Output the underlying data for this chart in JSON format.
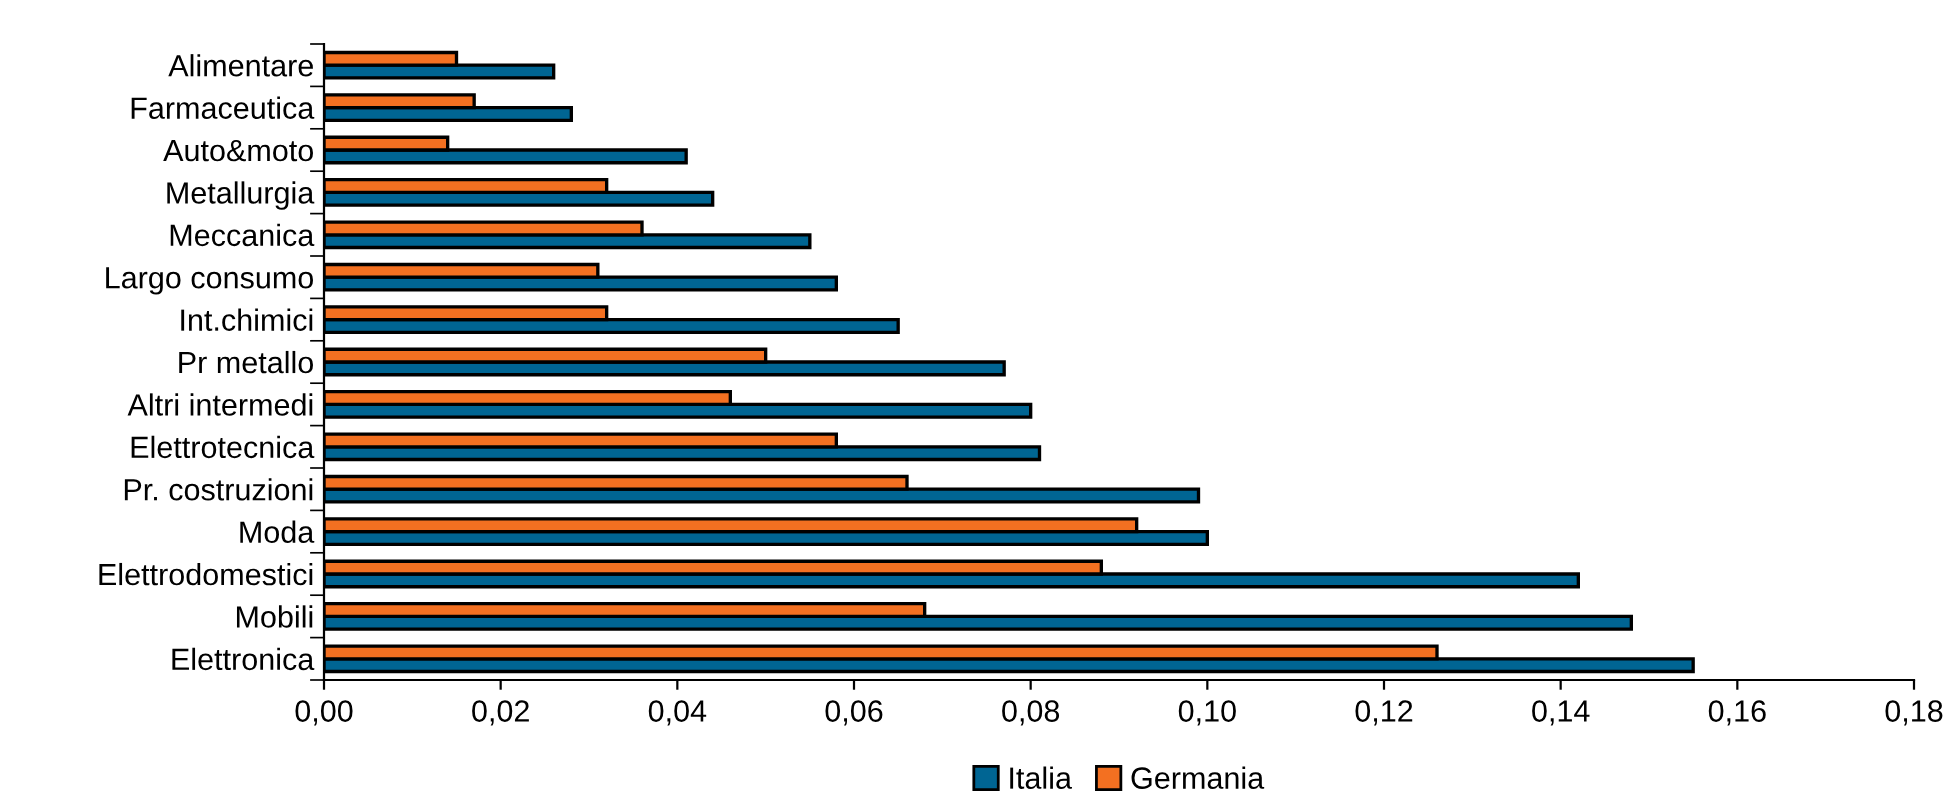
{
  "chart_data": {
    "type": "bar",
    "orientation": "horizontal",
    "categories": [
      "Alimentare",
      "Farmaceutica",
      "Auto&moto",
      "Metallurgia",
      "Meccanica",
      "Largo consumo",
      "Int.chimici",
      "Pr metallo",
      "Altri intermedi",
      "Elettrotecnica",
      "Pr. costruzioni",
      "Moda",
      "Elettrodomestici",
      "Mobili",
      "Elettronica"
    ],
    "series": [
      {
        "name": "Italia",
        "color": "#006593",
        "values": [
          0.026,
          0.028,
          0.041,
          0.044,
          0.055,
          0.058,
          0.065,
          0.077,
          0.08,
          0.081,
          0.099,
          0.1,
          0.142,
          0.148,
          0.155
        ]
      },
      {
        "name": "Germania",
        "color": "#f37021",
        "values": [
          0.015,
          0.017,
          0.014,
          0.032,
          0.036,
          0.031,
          0.032,
          0.05,
          0.046,
          0.058,
          0.066,
          0.092,
          0.088,
          0.068,
          0.126
        ]
      }
    ],
    "xlim": [
      0,
      0.18
    ],
    "xticks": [
      {
        "value": 0,
        "label": "0,00"
      },
      {
        "value": 0.02,
        "label": "0,02"
      },
      {
        "value": 0.04,
        "label": "0,04"
      },
      {
        "value": 0.06,
        "label": "0,06"
      },
      {
        "value": 0.08,
        "label": "0,08"
      },
      {
        "value": 0.1,
        "label": "0,10"
      },
      {
        "value": 0.12,
        "label": "0,12"
      },
      {
        "value": 0.14,
        "label": "0,14"
      },
      {
        "value": 0.16,
        "label": "0,16"
      },
      {
        "value": 0.18,
        "label": "0,18"
      }
    ],
    "grid": false,
    "legend": "bottom"
  }
}
